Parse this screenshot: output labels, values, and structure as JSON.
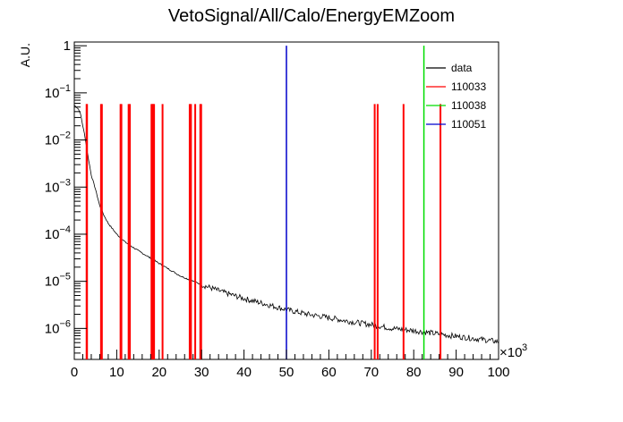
{
  "chart_data": {
    "type": "line",
    "title": "VetoSignal/All/Calo/EnergyEMZoom",
    "ylabel": "A.U.",
    "xlabel": "",
    "x_scale_label": "×10",
    "x_scale_exp": "3",
    "xlim": [
      0,
      100000
    ],
    "ylim": [
      2.2e-07,
      1.2
    ],
    "yscale": "log",
    "grid": false,
    "legend_position": "top-right",
    "x_ticks": [
      {
        "value": 0,
        "label": "0"
      },
      {
        "value": 10000,
        "label": "10"
      },
      {
        "value": 20000,
        "label": "20"
      },
      {
        "value": 30000,
        "label": "30"
      },
      {
        "value": 40000,
        "label": "40"
      },
      {
        "value": 50000,
        "label": "50"
      },
      {
        "value": 60000,
        "label": "60"
      },
      {
        "value": 70000,
        "label": "70"
      },
      {
        "value": 80000,
        "label": "80"
      },
      {
        "value": 90000,
        "label": "90"
      },
      {
        "value": 100000,
        "label": "100"
      }
    ],
    "y_ticks": [
      {
        "value": 1,
        "base": "1",
        "exp": ""
      },
      {
        "value": 0.1,
        "base": "10",
        "exp": "−1"
      },
      {
        "value": 0.01,
        "base": "10",
        "exp": "−2"
      },
      {
        "value": 0.001,
        "base": "10",
        "exp": "−3"
      },
      {
        "value": 0.0001,
        "base": "10",
        "exp": "−4"
      },
      {
        "value": 1e-05,
        "base": "10",
        "exp": "−5"
      },
      {
        "value": 1e-06,
        "base": "10",
        "exp": "−6"
      }
    ],
    "series": [
      {
        "name": "data",
        "color": "#000000",
        "x": [
          0,
          500,
          1000,
          1500,
          2000,
          2500,
          3000,
          4000,
          5000,
          6000,
          7000,
          8000,
          10000,
          12000,
          15000,
          18000,
          20000,
          25000,
          30000,
          35000,
          40000,
          45000,
          50000,
          55000,
          60000,
          65000,
          70000,
          75000,
          80000,
          85000,
          90000,
          95000,
          100000
        ],
        "y": [
          0.055,
          0.05,
          0.045,
          0.035,
          0.02,
          0.012,
          0.006,
          0.0018,
          0.0009,
          0.0004,
          0.00025,
          0.00017,
          0.0001,
          6.8e-05,
          4.5e-05,
          3.1e-05,
          2.4e-05,
          1.3e-05,
          8.5e-06,
          5.9e-06,
          4.3e-06,
          3.3e-06,
          2.5e-06,
          2e-06,
          1.7e-06,
          1.4e-06,
          1.2e-06,
          1e-06,
          9e-07,
          7.8e-07,
          6.8e-07,
          6e-07,
          5.2e-07
        ]
      },
      {
        "name": "110033",
        "color": "#ff0000",
        "x": [
          2900,
          3000,
          6300,
          6500,
          10900,
          11100,
          12800,
          13100,
          18200,
          18400,
          18600,
          18800,
          20800,
          27200,
          27500,
          28500,
          29700,
          29900,
          70800,
          71500,
          77600,
          86300
        ],
        "y": 0.058
      },
      {
        "name": "110038",
        "color": "#00dd00",
        "x": [
          82400
        ],
        "y": 1.0
      },
      {
        "name": "110051",
        "color": "#0000cc",
        "x": [
          50000
        ],
        "y": 1.0
      }
    ]
  }
}
